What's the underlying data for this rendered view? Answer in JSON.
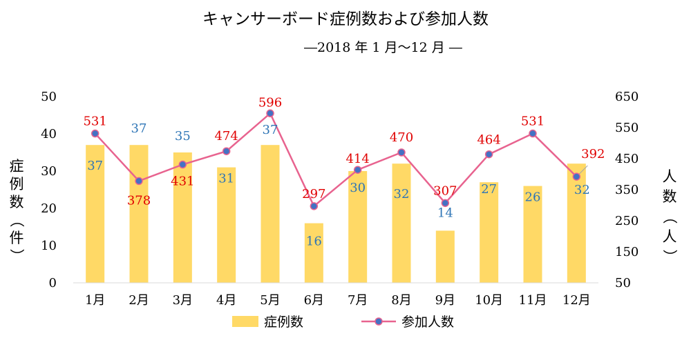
{
  "chart_data": {
    "type": "bar",
    "title": "キャンサーボード症例数および参加人数",
    "subtitle": "―2018 年 1 月～12 月 ―",
    "categories": [
      "1月",
      "2月",
      "3月",
      "4月",
      "5月",
      "6月",
      "7月",
      "8月",
      "9月",
      "10月",
      "11月",
      "12月"
    ],
    "series": [
      {
        "name": "症例数",
        "type": "bar",
        "axis": "left",
        "color": "#ffd966",
        "label_color": "#2e75b6",
        "values": [
          37,
          37,
          35,
          31,
          37,
          16,
          30,
          32,
          14,
          27,
          26,
          32
        ]
      },
      {
        "name": "参加人数",
        "type": "line",
        "axis": "right",
        "color": "#e8638f",
        "marker_color": "#4472c4",
        "label_color": "#e00000",
        "values": [
          531,
          378,
          431,
          474,
          596,
          297,
          414,
          470,
          307,
          464,
          531,
          392
        ]
      }
    ],
    "ylabel": "症例数（件）",
    "ylabel_right": "人数（人）",
    "ylim": [
      0,
      50
    ],
    "yticks": [
      0,
      10,
      20,
      30,
      40,
      50
    ],
    "ylim_right": [
      50,
      650
    ],
    "yticks_right": [
      50,
      150,
      250,
      350,
      450,
      550,
      650
    ],
    "grid": false,
    "legend_position": "bottom"
  }
}
